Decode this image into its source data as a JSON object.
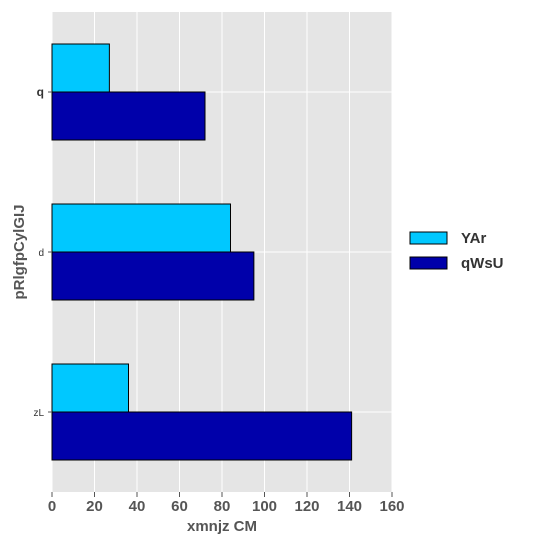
{
  "chart_data": {
    "type": "bar",
    "orientation": "horizontal",
    "categories": [
      "q",
      "d",
      "zL"
    ],
    "series": [
      {
        "name": "YAr",
        "color": "#00c8ff",
        "values": [
          27,
          84,
          36
        ]
      },
      {
        "name": "qWsU",
        "color": "#0000aa",
        "values": [
          72,
          95,
          141
        ]
      }
    ],
    "xlabel": "xmnjz  CM",
    "ylabel": "pRlgfpCylGIJ",
    "xlim": [
      0,
      160
    ],
    "xticks": [
      "0",
      "20",
      "40",
      "60",
      "80",
      "100",
      "120",
      "140",
      "160"
    ],
    "grid": true,
    "background": "#e5e5e5",
    "legend_position": "right"
  }
}
